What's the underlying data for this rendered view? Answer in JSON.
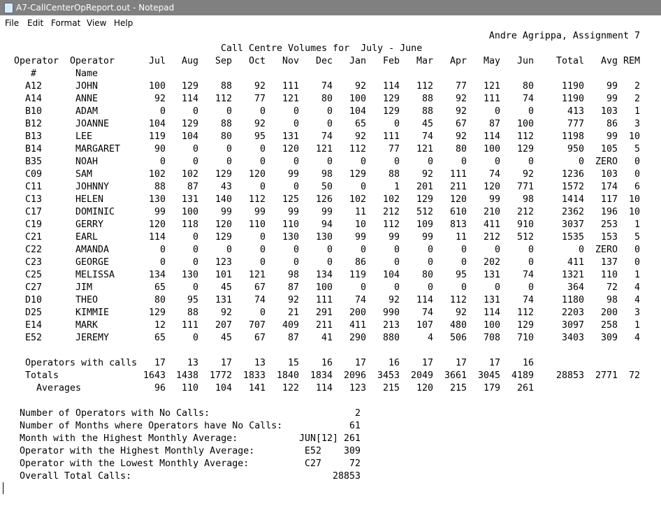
{
  "window": {
    "title": "A7-CallCenterOpReport.out - Notepad"
  },
  "menu": [
    "File",
    "Edit",
    "Format",
    "View",
    "Help"
  ],
  "report": {
    "author": "Andre Agrippa, Assignment 7",
    "title": "Call Centre Volumes for  July - June",
    "headers": {
      "operator_id": [
        "Operator",
        "#"
      ],
      "operator_name": [
        "Operator",
        "Name"
      ],
      "months": [
        "Jul",
        "Aug",
        "Sep",
        "Oct",
        "Nov",
        "Dec",
        "Jan",
        "Feb",
        "Mar",
        "Apr",
        "May",
        "Jun"
      ],
      "total": "Total",
      "avg": "Avg",
      "rem": "REM"
    },
    "rows": [
      {
        "id": "A12",
        "name": "JOHN",
        "months": [
          100,
          129,
          88,
          92,
          111,
          74,
          92,
          114,
          112,
          77,
          121,
          80
        ],
        "total": 1190,
        "avg": 99,
        "rem": 2
      },
      {
        "id": "A14",
        "name": "ANNE",
        "months": [
          92,
          114,
          112,
          77,
          121,
          80,
          100,
          129,
          88,
          92,
          111,
          74
        ],
        "total": 1190,
        "avg": 99,
        "rem": 2
      },
      {
        "id": "B10",
        "name": "ADAM",
        "months": [
          0,
          0,
          0,
          0,
          0,
          0,
          104,
          129,
          88,
          92,
          0,
          0
        ],
        "total": 413,
        "avg": 103,
        "rem": 1
      },
      {
        "id": "B12",
        "name": "JOANNE",
        "months": [
          104,
          129,
          88,
          92,
          0,
          0,
          65,
          0,
          45,
          67,
          87,
          100
        ],
        "total": 777,
        "avg": 86,
        "rem": 3
      },
      {
        "id": "B13",
        "name": "LEE",
        "months": [
          119,
          104,
          80,
          95,
          131,
          74,
          92,
          111,
          74,
          92,
          114,
          112
        ],
        "total": 1198,
        "avg": 99,
        "rem": 10
      },
      {
        "id": "B14",
        "name": "MARGARET",
        "months": [
          90,
          0,
          0,
          0,
          120,
          121,
          112,
          77,
          121,
          80,
          100,
          129
        ],
        "total": 950,
        "avg": 105,
        "rem": 5
      },
      {
        "id": "B35",
        "name": "NOAH",
        "months": [
          0,
          0,
          0,
          0,
          0,
          0,
          0,
          0,
          0,
          0,
          0,
          0
        ],
        "total": 0,
        "avg": "ZERO",
        "rem": 0
      },
      {
        "id": "C09",
        "name": "SAM",
        "months": [
          102,
          102,
          129,
          120,
          99,
          98,
          129,
          88,
          92,
          111,
          74,
          92
        ],
        "total": 1236,
        "avg": 103,
        "rem": 0
      },
      {
        "id": "C11",
        "name": "JOHNNY",
        "months": [
          88,
          87,
          43,
          0,
          0,
          50,
          0,
          1,
          201,
          211,
          120,
          771
        ],
        "total": 1572,
        "avg": 174,
        "rem": 6
      },
      {
        "id": "C13",
        "name": "HELEN",
        "months": [
          130,
          131,
          140,
          112,
          125,
          126,
          102,
          102,
          129,
          120,
          99,
          98
        ],
        "total": 1414,
        "avg": 117,
        "rem": 10
      },
      {
        "id": "C17",
        "name": "DOMINIC",
        "months": [
          99,
          100,
          99,
          99,
          99,
          99,
          11,
          212,
          512,
          610,
          210,
          212
        ],
        "total": 2362,
        "avg": 196,
        "rem": 10
      },
      {
        "id": "C19",
        "name": "GERRY",
        "months": [
          120,
          118,
          120,
          110,
          110,
          94,
          10,
          112,
          109,
          813,
          411,
          910
        ],
        "total": 3037,
        "avg": 253,
        "rem": 1
      },
      {
        "id": "C21",
        "name": "EARL",
        "months": [
          114,
          0,
          129,
          0,
          130,
          130,
          99,
          99,
          99,
          11,
          212,
          512
        ],
        "total": 1535,
        "avg": 153,
        "rem": 5
      },
      {
        "id": "C22",
        "name": "AMANDA",
        "months": [
          0,
          0,
          0,
          0,
          0,
          0,
          0,
          0,
          0,
          0,
          0,
          0
        ],
        "total": 0,
        "avg": "ZERO",
        "rem": 0
      },
      {
        "id": "C23",
        "name": "GEORGE",
        "months": [
          0,
          0,
          123,
          0,
          0,
          0,
          86,
          0,
          0,
          0,
          202,
          0
        ],
        "total": 411,
        "avg": 137,
        "rem": 0
      },
      {
        "id": "C25",
        "name": "MELISSA",
        "months": [
          134,
          130,
          101,
          121,
          98,
          134,
          119,
          104,
          80,
          95,
          131,
          74
        ],
        "total": 1321,
        "avg": 110,
        "rem": 1
      },
      {
        "id": "C27",
        "name": "JIM",
        "months": [
          65,
          0,
          45,
          67,
          87,
          100,
          0,
          0,
          0,
          0,
          0,
          0
        ],
        "total": 364,
        "avg": 72,
        "rem": 4
      },
      {
        "id": "D10",
        "name": "THEO",
        "months": [
          80,
          95,
          131,
          74,
          92,
          111,
          74,
          92,
          114,
          112,
          131,
          74
        ],
        "total": 1180,
        "avg": 98,
        "rem": 4
      },
      {
        "id": "D25",
        "name": "KIMMIE",
        "months": [
          129,
          88,
          92,
          0,
          21,
          291,
          200,
          990,
          74,
          92,
          114,
          112
        ],
        "total": 2203,
        "avg": 200,
        "rem": 3
      },
      {
        "id": "E14",
        "name": "MARK",
        "months": [
          12,
          111,
          207,
          707,
          409,
          211,
          411,
          213,
          107,
          480,
          100,
          129
        ],
        "total": 3097,
        "avg": 258,
        "rem": 1
      },
      {
        "id": "E52",
        "name": "JEREMY",
        "months": [
          65,
          0,
          45,
          67,
          87,
          41,
          290,
          880,
          4,
          506,
          708,
          710
        ],
        "total": 3403,
        "avg": 309,
        "rem": 4
      }
    ],
    "summary_rows": [
      {
        "label": "Operators with calls",
        "months": [
          17,
          13,
          17,
          13,
          15,
          16,
          17,
          16,
          17,
          17,
          17,
          16
        ]
      },
      {
        "label": "Totals",
        "months": [
          1643,
          1438,
          1772,
          1833,
          1840,
          1834,
          2096,
          3453,
          2049,
          3661,
          3045,
          4189
        ],
        "total": 28853,
        "avg": 2771,
        "rem": 72
      },
      {
        "label": "Averages",
        "months": [
          96,
          110,
          104,
          141,
          122,
          114,
          123,
          215,
          120,
          215,
          179,
          261
        ]
      }
    ],
    "stats": [
      {
        "label": "Number of Operators with No Calls:",
        "value": 2
      },
      {
        "label": "Number of Months where Operators have No Calls:",
        "value": 61
      },
      {
        "label": "Month with the Highest Monthly Average:",
        "key": "JUN[12]",
        "value": 261
      },
      {
        "label": "Operator with the Highest Monthly Average:",
        "key": "E52",
        "value": 309
      },
      {
        "label": "Operator with the Lowest Monthly Average:",
        "key": "C27",
        "value": 72
      },
      {
        "label": "Overall Total Calls:",
        "value": 28853
      }
    ]
  }
}
